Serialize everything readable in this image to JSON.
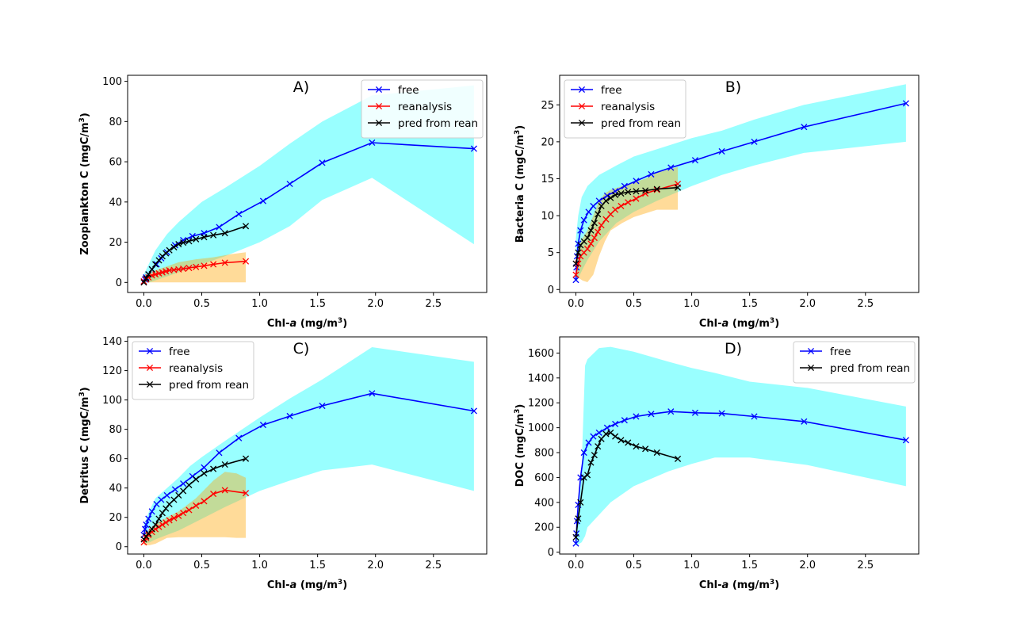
{
  "chart_data": [
    {
      "type": "line",
      "title": "A)",
      "xlabel": "Chl-a (mg/m3)",
      "ylabel": "Zooplankton C (mgC/m3)",
      "xlim": [
        -0.14,
        2.96
      ],
      "ylim": [
        -5,
        103
      ],
      "xticks": [
        0.0,
        0.5,
        1.0,
        1.5,
        2.0,
        2.5
      ],
      "yticks": [
        0,
        20,
        40,
        60,
        80,
        100
      ],
      "legend_loc": "upper right",
      "series": [
        {
          "name": "free",
          "color": "#0000ff",
          "x": [
            0.0,
            0.01,
            0.02,
            0.04,
            0.07,
            0.11,
            0.15,
            0.2,
            0.27,
            0.34,
            0.42,
            0.52,
            0.65,
            0.82,
            1.03,
            1.26,
            1.54,
            1.97,
            2.85
          ],
          "y": [
            0.5,
            1.5,
            2.5,
            4,
            6.5,
            9,
            12,
            15,
            18.5,
            21,
            23,
            24.5,
            27.5,
            34,
            40.5,
            49,
            59.5,
            69.5,
            66.5
          ]
        },
        {
          "name": "reanalysis",
          "color": "#ff0000",
          "x": [
            0.0,
            0.02,
            0.04,
            0.07,
            0.1,
            0.13,
            0.16,
            0.19,
            0.22,
            0.26,
            0.3,
            0.34,
            0.39,
            0.45,
            0.52,
            0.6,
            0.7,
            0.88
          ],
          "y": [
            0.5,
            1.5,
            2.5,
            3.5,
            4,
            4.5,
            5,
            5.5,
            6,
            6.2,
            6.5,
            6.8,
            7.2,
            7.7,
            8.3,
            9,
            9.8,
            10.5
          ]
        },
        {
          "name": "pred from rean",
          "color": "#000000",
          "x": [
            0.0,
            0.02,
            0.04,
            0.07,
            0.1,
            0.13,
            0.16,
            0.19,
            0.22,
            0.26,
            0.3,
            0.34,
            0.39,
            0.45,
            0.52,
            0.6,
            0.7,
            0.88
          ],
          "y": [
            0,
            2,
            4,
            6.5,
            9,
            11,
            13,
            14.5,
            16,
            17.5,
            19,
            19.8,
            20.5,
            21.5,
            22.5,
            23.5,
            24.5,
            28
          ]
        }
      ],
      "bands": [
        {
          "color": "#00ffff",
          "opacity": 0.4,
          "x": [
            0.0,
            0.05,
            0.1,
            0.2,
            0.3,
            0.5,
            0.7,
            1.0,
            1.26,
            1.54,
            1.97,
            2.85
          ],
          "upper": [
            4,
            10,
            16,
            24,
            30,
            40,
            47,
            58,
            69,
            80,
            93,
            98
          ],
          "lower": [
            0,
            0,
            1,
            3,
            5,
            9,
            13,
            20,
            28,
            41,
            52,
            19
          ]
        },
        {
          "color": "#ffa500",
          "opacity": 0.4,
          "x": [
            0.0,
            0.05,
            0.1,
            0.2,
            0.3,
            0.45,
            0.6,
            0.75,
            0.88
          ],
          "upper": [
            2,
            4,
            6,
            8,
            10,
            11.5,
            12.5,
            14,
            15
          ],
          "lower": [
            0,
            0,
            0,
            0,
            0,
            0,
            0,
            0,
            0
          ]
        }
      ]
    },
    {
      "type": "line",
      "title": "B)",
      "xlabel": "Chl-a (mg/m3)",
      "ylabel": "Bacteria C (mgC/m3)",
      "xlim": [
        -0.14,
        2.96
      ],
      "ylim": [
        -0.4,
        29
      ],
      "xticks": [
        0.0,
        0.5,
        1.0,
        1.5,
        2.0,
        2.5
      ],
      "yticks": [
        0,
        5,
        10,
        15,
        20,
        25
      ],
      "legend_loc": "upper left",
      "series": [
        {
          "name": "free",
          "color": "#0000ff",
          "x": [
            0.0,
            0.005,
            0.01,
            0.02,
            0.04,
            0.07,
            0.11,
            0.15,
            0.2,
            0.27,
            0.34,
            0.42,
            0.52,
            0.65,
            0.82,
            1.03,
            1.26,
            1.54,
            1.97,
            2.85
          ],
          "y": [
            1.3,
            3,
            4.5,
            6.2,
            8,
            9.4,
            10.5,
            11.3,
            12,
            12.7,
            13.3,
            14,
            14.7,
            15.6,
            16.5,
            17.5,
            18.7,
            20,
            22,
            25.2
          ]
        },
        {
          "name": "reanalysis",
          "color": "#ff0000",
          "x": [
            0.0,
            0.02,
            0.04,
            0.07,
            0.1,
            0.13,
            0.16,
            0.19,
            0.22,
            0.26,
            0.3,
            0.34,
            0.39,
            0.45,
            0.52,
            0.6,
            0.7,
            0.88
          ],
          "y": [
            2,
            3.5,
            4.5,
            5,
            5.5,
            6.2,
            7,
            7.8,
            8.7,
            9.5,
            10.2,
            10.8,
            11.3,
            11.8,
            12.3,
            13,
            13.5,
            14.3
          ]
        },
        {
          "name": "pred from rean",
          "color": "#000000",
          "x": [
            0.0,
            0.02,
            0.04,
            0.07,
            0.1,
            0.13,
            0.16,
            0.19,
            0.22,
            0.26,
            0.3,
            0.34,
            0.39,
            0.45,
            0.52,
            0.6,
            0.7,
            0.88
          ],
          "y": [
            3.5,
            5,
            6,
            6.5,
            7,
            8,
            9,
            10.2,
            11.3,
            12,
            12.4,
            12.8,
            13,
            13.2,
            13.3,
            13.4,
            13.6,
            13.8
          ]
        }
      ],
      "bands": [
        {
          "color": "#00ffff",
          "opacity": 0.4,
          "x": [
            0.0,
            0.02,
            0.05,
            0.1,
            0.2,
            0.35,
            0.5,
            0.7,
            1.0,
            1.26,
            1.54,
            1.97,
            2.85
          ],
          "upper": [
            7,
            10,
            12.5,
            14,
            15.5,
            16.8,
            18,
            19,
            20.5,
            21.5,
            23,
            25,
            27.8
          ],
          "lower": [
            1,
            1.5,
            2.5,
            4,
            6.5,
            9,
            10.5,
            12,
            14,
            15.5,
            16.8,
            18.5,
            20
          ]
        },
        {
          "color": "#ffa500",
          "opacity": 0.4,
          "x": [
            0.0,
            0.03,
            0.06,
            0.1,
            0.15,
            0.2,
            0.25,
            0.3,
            0.4,
            0.5,
            0.6,
            0.7,
            0.88
          ],
          "upper": [
            4,
            6,
            7,
            8,
            10,
            12,
            13,
            13.5,
            14,
            14.5,
            15,
            15.8,
            16.6
          ],
          "lower": [
            1.5,
            1.5,
            1.2,
            1,
            2,
            4.5,
            6.5,
            8,
            9,
            9.8,
            10.3,
            10.8,
            10.8
          ]
        }
      ]
    },
    {
      "type": "line",
      "title": "C)",
      "xlabel": "Chl-a (mg/m3)",
      "ylabel": "Detritus C (mgC/m3)",
      "xlim": [
        -0.14,
        2.96
      ],
      "ylim": [
        -5,
        143
      ],
      "xticks": [
        0.0,
        0.5,
        1.0,
        1.5,
        2.0,
        2.5
      ],
      "yticks": [
        0,
        20,
        40,
        60,
        80,
        100,
        120,
        140
      ],
      "legend_loc": "upper left",
      "series": [
        {
          "name": "free",
          "color": "#0000ff",
          "x": [
            0.0,
            0.01,
            0.02,
            0.04,
            0.07,
            0.11,
            0.15,
            0.2,
            0.27,
            0.34,
            0.42,
            0.52,
            0.65,
            0.82,
            1.03,
            1.26,
            1.54,
            1.97,
            2.85
          ],
          "y": [
            8,
            12,
            15,
            19,
            24,
            29,
            32,
            35,
            39,
            43,
            48,
            54,
            64,
            74,
            83,
            89,
            96,
            104.5,
            92.5
          ]
        },
        {
          "name": "reanalysis",
          "color": "#ff0000",
          "x": [
            0.0,
            0.02,
            0.04,
            0.07,
            0.1,
            0.13,
            0.16,
            0.19,
            0.22,
            0.26,
            0.3,
            0.34,
            0.39,
            0.45,
            0.52,
            0.6,
            0.7,
            0.88
          ],
          "y": [
            3,
            6,
            8,
            10,
            12,
            13.5,
            15,
            16.5,
            18,
            19.5,
            21,
            23,
            25,
            28,
            31,
            36,
            38.5,
            36.5
          ]
        },
        {
          "name": "pred from rean",
          "color": "#000000",
          "x": [
            0.0,
            0.02,
            0.04,
            0.07,
            0.1,
            0.13,
            0.16,
            0.19,
            0.22,
            0.26,
            0.3,
            0.34,
            0.39,
            0.45,
            0.52,
            0.6,
            0.7,
            0.88
          ],
          "y": [
            5,
            7,
            9,
            12,
            15,
            19,
            23,
            26,
            29,
            32,
            35,
            38,
            42,
            46,
            50,
            53,
            56,
            60
          ]
        }
      ],
      "bands": [
        {
          "color": "#00ffff",
          "opacity": 0.4,
          "x": [
            0.0,
            0.05,
            0.1,
            0.2,
            0.3,
            0.4,
            0.5,
            0.7,
            1.0,
            1.26,
            1.54,
            1.97,
            2.85
          ],
          "upper": [
            15,
            25,
            33,
            40,
            47,
            55,
            61,
            72,
            88,
            101,
            114,
            136,
            126
          ],
          "lower": [
            2,
            3,
            5,
            8,
            11,
            15,
            19,
            27,
            38,
            45,
            52,
            56,
            38
          ]
        },
        {
          "color": "#ffa500",
          "opacity": 0.4,
          "x": [
            0.0,
            0.05,
            0.1,
            0.2,
            0.3,
            0.45,
            0.6,
            0.7,
            0.8,
            0.88
          ],
          "upper": [
            8,
            12,
            15,
            20,
            24,
            33,
            45,
            51,
            50,
            47
          ],
          "lower": [
            1,
            1,
            2,
            6,
            6.5,
            6.5,
            6.5,
            6.5,
            6,
            6
          ]
        }
      ]
    },
    {
      "type": "line",
      "title": "D)",
      "xlabel": "Chl-a (mg/m3)",
      "ylabel": "DOC (mgC/m3)",
      "xlim": [
        -0.14,
        2.96
      ],
      "ylim": [
        -15,
        1730
      ],
      "xticks": [
        0.0,
        0.5,
        1.0,
        1.5,
        2.0,
        2.5
      ],
      "yticks": [
        0,
        200,
        400,
        600,
        800,
        1000,
        1200,
        1400,
        1600
      ],
      "legend_loc": "upper right",
      "series": [
        {
          "name": "free",
          "color": "#0000ff",
          "x": [
            0.0,
            0.005,
            0.01,
            0.02,
            0.04,
            0.07,
            0.11,
            0.15,
            0.2,
            0.27,
            0.34,
            0.42,
            0.52,
            0.65,
            0.82,
            1.03,
            1.26,
            1.54,
            1.97,
            2.85
          ],
          "y": [
            70,
            150,
            250,
            380,
            600,
            800,
            880,
            930,
            960,
            1000,
            1030,
            1060,
            1090,
            1110,
            1130,
            1120,
            1115,
            1090,
            1050,
            900
          ]
        },
        {
          "name": "pred from rean",
          "color": "#000000",
          "x": [
            0.0,
            0.02,
            0.04,
            0.07,
            0.1,
            0.13,
            0.16,
            0.19,
            0.22,
            0.26,
            0.3,
            0.34,
            0.39,
            0.45,
            0.52,
            0.6,
            0.7,
            0.88
          ],
          "y": [
            120,
            270,
            400,
            600,
            620,
            720,
            780,
            850,
            910,
            950,
            960,
            930,
            900,
            880,
            850,
            830,
            800,
            750
          ]
        }
      ],
      "bands": [
        {
          "color": "#00ffff",
          "opacity": 0.4,
          "x": [
            0.0,
            0.05,
            0.08,
            0.1,
            0.2,
            0.3,
            0.5,
            0.8,
            1.0,
            1.2,
            1.5,
            2.0,
            2.85
          ],
          "upper": [
            150,
            700,
            1500,
            1550,
            1640,
            1650,
            1610,
            1530,
            1480,
            1440,
            1370,
            1320,
            1170
          ],
          "lower": [
            50,
            80,
            130,
            200,
            300,
            400,
            530,
            650,
            710,
            760,
            760,
            700,
            530
          ]
        }
      ]
    }
  ]
}
